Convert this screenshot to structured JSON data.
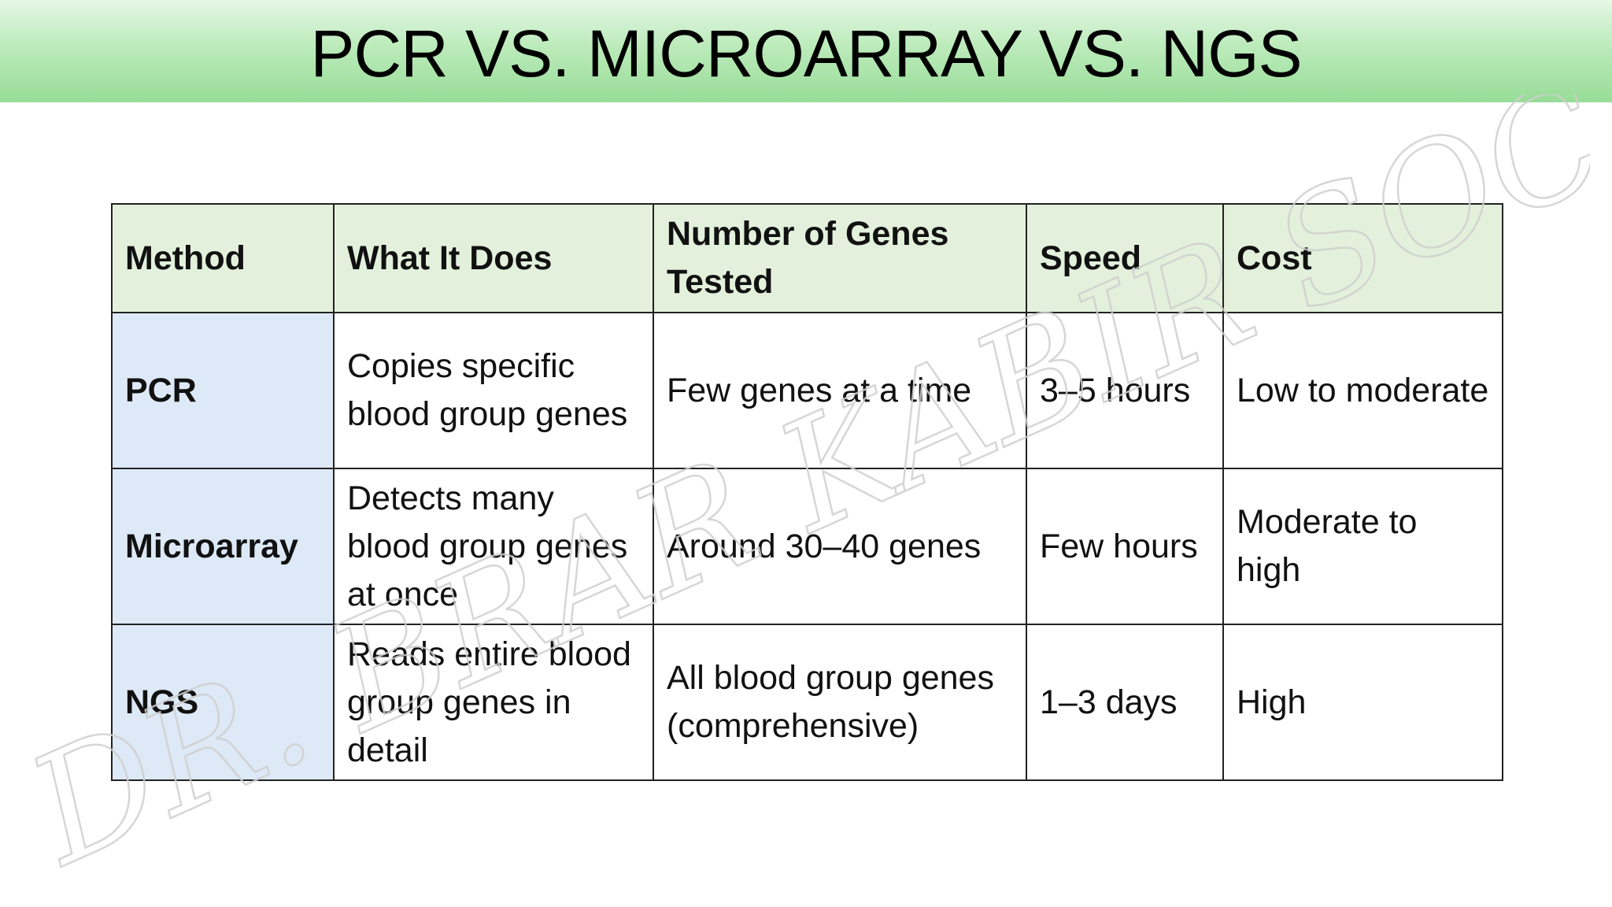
{
  "title": "PCR VS. MICROARRAY VS. NGS",
  "watermark_text": "DR. BRAR KABIR SOCHIR",
  "table": {
    "headers": [
      "Method",
      "What It Does",
      "Number of Genes Tested",
      "Speed",
      "Cost"
    ],
    "rows": [
      {
        "method": "PCR",
        "what": "Copies specific blood group genes",
        "genes": "Few genes at a time",
        "speed": "3–5 hours",
        "cost": "Low to moderate"
      },
      {
        "method": "Microarray",
        "what": "Detects many blood group genes at once",
        "genes": "Around 30–40 genes",
        "speed": "Few hours",
        "cost": "Moderate to high"
      },
      {
        "method": "NGS",
        "what": "Reads entire blood group genes in detail",
        "genes": "All blood group genes (comprehensive)",
        "speed": "1–3 days",
        "cost": "High"
      }
    ]
  },
  "colors": {
    "title_band": "#98dc98",
    "header_fill": "#e3f1dc",
    "method_fill": "#dde9f6"
  }
}
